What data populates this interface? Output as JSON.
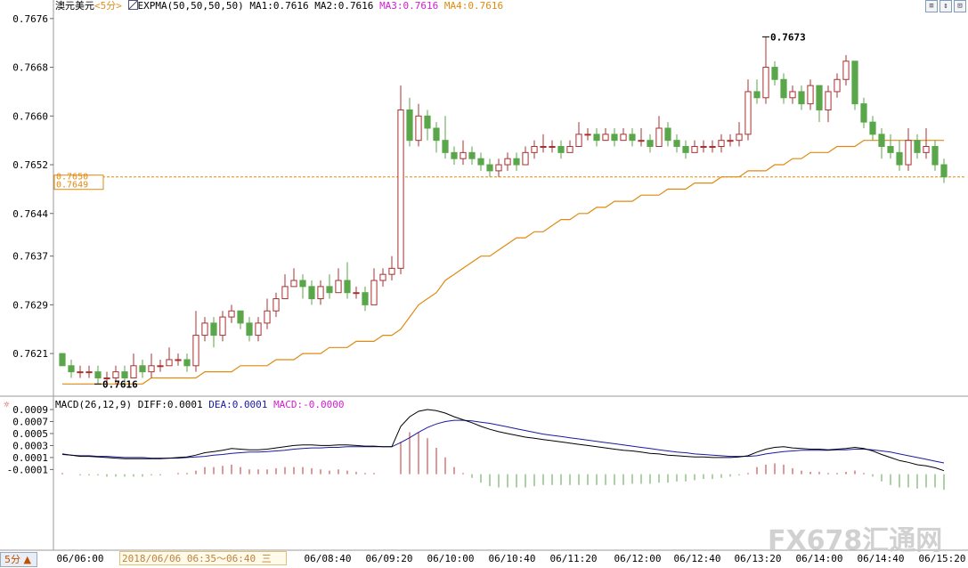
{
  "header": {
    "symbol": "澳元美元",
    "period": "<5分>",
    "indicator": "EXPMA(50,50,50,50)",
    "ma1": "MA1:0.7616",
    "ma2": "MA2:0.7616",
    "ma3": "MA3:0.7616",
    "ma4": "MA4:0.7616"
  },
  "macd_header": {
    "name": "MACD(26,12,9)",
    "diff": "DIFF:0.0001",
    "dea": "DEA:0.0001",
    "macd": "MACD:-0.0000"
  },
  "toolbar": {
    "icon_a": "≡",
    "icon_b": "↕",
    "icon_c": "⊡"
  },
  "price_labels": {
    "current_a": "0.7650",
    "current_b": "0.7649",
    "high": "0.7673",
    "low": "0.7616"
  },
  "crosshair_time": "2018/06/06 06:35～06:40 三",
  "period_tab": "5分 ▲",
  "watermark": "FX678汇通网",
  "colors": {
    "up": "#a83030",
    "down": "#5aa64a",
    "ema": "#e08a10",
    "diff": "#000000",
    "dea": "#1a1aa0",
    "grid": "#cccccc"
  },
  "chart_data": [
    {
      "type": "candlestick",
      "ylim": [
        0.7614,
        0.7677
      ],
      "yticks": [
        "0.7676",
        "0.7668",
        "0.7660",
        "0.7652",
        "0.7644",
        "0.7637",
        "0.7629",
        "0.7621"
      ],
      "xticks": [
        "06/06:00",
        "06/08:40",
        "06/09:20",
        "06/10:00",
        "06/10:40",
        "06/11:20",
        "06/12:00",
        "06/12:40",
        "06/13:20",
        "06/14:00",
        "06/14:40",
        "06/15:20"
      ],
      "candles": [
        [
          0.7621,
          0.7619,
          0.7621,
          0.7619
        ],
        [
          0.7619,
          0.7618,
          0.762,
          0.7617
        ],
        [
          0.7618,
          0.7618,
          0.7619,
          0.7617
        ],
        [
          0.7618,
          0.7618,
          0.7619,
          0.7617
        ],
        [
          0.7618,
          0.7617,
          0.7619,
          0.7616
        ],
        [
          0.7617,
          0.7617,
          0.7618,
          0.7616
        ],
        [
          0.7617,
          0.7618,
          0.7619,
          0.7616
        ],
        [
          0.7618,
          0.7617,
          0.7619,
          0.7616
        ],
        [
          0.7617,
          0.7619,
          0.7621,
          0.7617
        ],
        [
          0.7619,
          0.7618,
          0.762,
          0.7617
        ],
        [
          0.7618,
          0.7619,
          0.7621,
          0.7617
        ],
        [
          0.7619,
          0.7619,
          0.762,
          0.7618
        ],
        [
          0.7619,
          0.762,
          0.7622,
          0.7619
        ],
        [
          0.762,
          0.762,
          0.7621,
          0.7619
        ],
        [
          0.762,
          0.7619,
          0.7621,
          0.7618
        ],
        [
          0.7619,
          0.7624,
          0.7628,
          0.7618
        ],
        [
          0.7624,
          0.7626,
          0.7627,
          0.7623
        ],
        [
          0.7626,
          0.7624,
          0.7627,
          0.7622
        ],
        [
          0.7624,
          0.7627,
          0.7628,
          0.7623
        ],
        [
          0.7627,
          0.7628,
          0.7629,
          0.7626
        ],
        [
          0.7628,
          0.7626,
          0.7628,
          0.7625
        ],
        [
          0.7626,
          0.7624,
          0.7627,
          0.7623
        ],
        [
          0.7624,
          0.7626,
          0.7627,
          0.7623
        ],
        [
          0.7626,
          0.7628,
          0.763,
          0.7625
        ],
        [
          0.7628,
          0.763,
          0.7631,
          0.7627
        ],
        [
          0.763,
          0.7632,
          0.7634,
          0.763
        ],
        [
          0.7632,
          0.7633,
          0.7635,
          0.7632
        ],
        [
          0.7633,
          0.7632,
          0.7634,
          0.763
        ],
        [
          0.7632,
          0.763,
          0.7633,
          0.7629
        ],
        [
          0.763,
          0.7632,
          0.7633,
          0.7629
        ],
        [
          0.7632,
          0.7631,
          0.7634,
          0.763
        ],
        [
          0.7631,
          0.7633,
          0.7635,
          0.7631
        ],
        [
          0.7633,
          0.7631,
          0.7636,
          0.763
        ],
        [
          0.7631,
          0.7631,
          0.7632,
          0.763
        ],
        [
          0.7631,
          0.7629,
          0.7632,
          0.7628
        ],
        [
          0.7629,
          0.7633,
          0.7635,
          0.7629
        ],
        [
          0.7633,
          0.7634,
          0.7635,
          0.7632
        ],
        [
          0.7634,
          0.7635,
          0.7637,
          0.7633
        ],
        [
          0.7635,
          0.7661,
          0.7665,
          0.7634
        ],
        [
          0.7661,
          0.7656,
          0.7663,
          0.7655
        ],
        [
          0.7656,
          0.766,
          0.7662,
          0.7655
        ],
        [
          0.766,
          0.7658,
          0.7661,
          0.7656
        ],
        [
          0.7658,
          0.7656,
          0.7659,
          0.7654
        ],
        [
          0.7656,
          0.7654,
          0.766,
          0.7653
        ],
        [
          0.7654,
          0.7653,
          0.7655,
          0.7652
        ],
        [
          0.7653,
          0.7654,
          0.7656,
          0.7652
        ],
        [
          0.7654,
          0.7653,
          0.7655,
          0.7652
        ],
        [
          0.7653,
          0.7652,
          0.7654,
          0.7651
        ],
        [
          0.7652,
          0.7651,
          0.7653,
          0.765
        ],
        [
          0.7651,
          0.7652,
          0.7653,
          0.765
        ],
        [
          0.7652,
          0.7653,
          0.7654,
          0.7651
        ],
        [
          0.7653,
          0.7652,
          0.7654,
          0.7651
        ],
        [
          0.7652,
          0.7654,
          0.7655,
          0.7652
        ],
        [
          0.7654,
          0.7655,
          0.7656,
          0.7653
        ],
        [
          0.7655,
          0.7655,
          0.7657,
          0.7654
        ],
        [
          0.7655,
          0.7655,
          0.7656,
          0.7654
        ],
        [
          0.7655,
          0.7654,
          0.7656,
          0.7653
        ],
        [
          0.7654,
          0.7655,
          0.7656,
          0.7654
        ],
        [
          0.7655,
          0.7657,
          0.7659,
          0.7655
        ],
        [
          0.7657,
          0.7657,
          0.7658,
          0.7656
        ],
        [
          0.7657,
          0.7656,
          0.7658,
          0.7655
        ],
        [
          0.7656,
          0.7657,
          0.7658,
          0.7656
        ],
        [
          0.7657,
          0.7656,
          0.7658,
          0.7655
        ],
        [
          0.7656,
          0.7657,
          0.7658,
          0.7656
        ],
        [
          0.7657,
          0.7656,
          0.7658,
          0.7655
        ],
        [
          0.7656,
          0.7656,
          0.7658,
          0.7655
        ],
        [
          0.7656,
          0.7655,
          0.7657,
          0.7654
        ],
        [
          0.7655,
          0.7658,
          0.766,
          0.7655
        ],
        [
          0.7658,
          0.7656,
          0.7659,
          0.7655
        ],
        [
          0.7656,
          0.7655,
          0.7657,
          0.7654
        ],
        [
          0.7655,
          0.7654,
          0.7656,
          0.7653
        ],
        [
          0.7654,
          0.7655,
          0.7656,
          0.7654
        ],
        [
          0.7655,
          0.7655,
          0.7656,
          0.7654
        ],
        [
          0.7655,
          0.7655,
          0.7656,
          0.7654
        ],
        [
          0.7655,
          0.7656,
          0.7657,
          0.7654
        ],
        [
          0.7656,
          0.7656,
          0.7657,
          0.7655
        ],
        [
          0.7656,
          0.7657,
          0.7659,
          0.7655
        ],
        [
          0.7657,
          0.7664,
          0.7666,
          0.7656
        ],
        [
          0.7664,
          0.7663,
          0.7666,
          0.7662
        ],
        [
          0.7663,
          0.7668,
          0.7673,
          0.7662
        ],
        [
          0.7668,
          0.7666,
          0.7669,
          0.7665
        ],
        [
          0.7666,
          0.7663,
          0.7667,
          0.7662
        ],
        [
          0.7663,
          0.7664,
          0.7665,
          0.7662
        ],
        [
          0.7664,
          0.7662,
          0.7665,
          0.7661
        ],
        [
          0.7662,
          0.7665,
          0.7666,
          0.7661
        ],
        [
          0.7665,
          0.7661,
          0.7665,
          0.7659
        ],
        [
          0.7661,
          0.7664,
          0.7665,
          0.7659
        ],
        [
          0.7664,
          0.7666,
          0.7667,
          0.7663
        ],
        [
          0.7666,
          0.7669,
          0.767,
          0.7665
        ],
        [
          0.7669,
          0.7662,
          0.7669,
          0.7661
        ],
        [
          0.7662,
          0.7659,
          0.7663,
          0.7658
        ],
        [
          0.7659,
          0.7657,
          0.766,
          0.7656
        ],
        [
          0.7657,
          0.7655,
          0.7658,
          0.7653
        ],
        [
          0.7655,
          0.7654,
          0.7657,
          0.7653
        ],
        [
          0.7654,
          0.7652,
          0.7656,
          0.7651
        ],
        [
          0.7652,
          0.7656,
          0.7658,
          0.7651
        ],
        [
          0.7656,
          0.7654,
          0.7657,
          0.7653
        ],
        [
          0.7654,
          0.7655,
          0.7658,
          0.7653
        ],
        [
          0.7655,
          0.7652,
          0.7656,
          0.7651
        ],
        [
          0.7652,
          0.765,
          0.7653,
          0.7649
        ]
      ],
      "ema": [
        0.7616,
        0.7616,
        0.7616,
        0.7616,
        0.7616,
        0.7616,
        0.7616,
        0.7616,
        0.7616,
        0.7616,
        0.7617,
        0.7617,
        0.7617,
        0.7617,
        0.7617,
        0.7617,
        0.7618,
        0.7618,
        0.7618,
        0.7618,
        0.7619,
        0.7619,
        0.7619,
        0.7619,
        0.762,
        0.762,
        0.762,
        0.7621,
        0.7621,
        0.7621,
        0.7622,
        0.7622,
        0.7622,
        0.7623,
        0.7623,
        0.7623,
        0.7624,
        0.7624,
        0.7625,
        0.7627,
        0.7629,
        0.763,
        0.7631,
        0.7633,
        0.7634,
        0.7635,
        0.7636,
        0.7637,
        0.7637,
        0.7638,
        0.7639,
        0.764,
        0.764,
        0.7641,
        0.7641,
        0.7642,
        0.7643,
        0.7643,
        0.7644,
        0.7644,
        0.7645,
        0.7645,
        0.7646,
        0.7646,
        0.7646,
        0.7647,
        0.7647,
        0.7647,
        0.7648,
        0.7648,
        0.7648,
        0.7649,
        0.7649,
        0.7649,
        0.765,
        0.765,
        0.765,
        0.7651,
        0.7651,
        0.7651,
        0.7652,
        0.7652,
        0.7653,
        0.7653,
        0.7654,
        0.7654,
        0.7654,
        0.7655,
        0.7655,
        0.7655,
        0.7656,
        0.7656,
        0.7656,
        0.7656,
        0.7656,
        0.7656,
        0.7656,
        0.7656,
        0.7656,
        0.7656
      ]
    },
    {
      "type": "line+bar",
      "name": "MACD",
      "ylim": [
        -0.0014,
        0.0009
      ],
      "yticks": [
        "0.0009",
        "0.0007",
        "0.0005",
        "0.0003",
        "0.0001",
        "-0.0001"
      ],
      "diff": [
        0.00016,
        0.00014,
        0.00012,
        0.00012,
        0.00011,
        0.0001,
        9e-05,
        8e-05,
        8e-05,
        8e-05,
        8e-05,
        8e-05,
        9e-05,
        0.0001,
        0.00011,
        0.00014,
        0.00018,
        0.0002,
        0.00022,
        0.00025,
        0.00024,
        0.00023,
        0.00023,
        0.00024,
        0.00026,
        0.00028,
        0.0003,
        0.00031,
        0.00031,
        0.0003,
        0.0003,
        0.00031,
        0.00031,
        0.0003,
        0.00029,
        0.00029,
        0.00028,
        0.00028,
        0.00062,
        0.00078,
        0.00087,
        0.0009,
        0.00088,
        0.00084,
        0.00078,
        0.00073,
        0.00068,
        0.00062,
        0.00057,
        0.00053,
        0.0005,
        0.00047,
        0.00044,
        0.00042,
        0.0004,
        0.00038,
        0.00036,
        0.00034,
        0.00032,
        0.0003,
        0.00028,
        0.00026,
        0.00024,
        0.00022,
        0.00021,
        0.00019,
        0.00017,
        0.00016,
        0.00014,
        0.00013,
        0.00012,
        0.00011,
        0.00011,
        0.0001,
        0.0001,
        0.0001,
        0.00011,
        0.00013,
        0.00019,
        0.00024,
        0.00027,
        0.00028,
        0.00026,
        0.00025,
        0.00024,
        0.00024,
        0.00023,
        0.00024,
        0.00025,
        0.00027,
        0.00025,
        0.00021,
        0.00015,
        0.0001,
        5e-05,
        2e-05,
        -2e-05,
        -4e-05,
        -7e-05,
        -0.00012
      ],
      "dea": [
        0.00015,
        0.00014,
        0.00013,
        0.00013,
        0.00012,
        0.00012,
        0.00011,
        0.0001,
        0.0001,
        0.0001,
        9e-05,
        9e-05,
        9e-05,
        9e-05,
        0.0001,
        0.00011,
        0.00012,
        0.00014,
        0.00015,
        0.00017,
        0.00018,
        0.00019,
        0.00019,
        0.0002,
        0.00021,
        0.00022,
        0.00024,
        0.00025,
        0.00026,
        0.00026,
        0.00027,
        0.00027,
        0.00028,
        0.00028,
        0.00028,
        0.00028,
        0.00028,
        0.00028,
        0.00035,
        0.00043,
        0.00052,
        0.0006,
        0.00066,
        0.0007,
        0.00072,
        0.00072,
        0.00071,
        0.00069,
        0.00067,
        0.00064,
        0.00061,
        0.00058,
        0.00055,
        0.00052,
        0.00049,
        0.00047,
        0.00045,
        0.00043,
        0.00041,
        0.00039,
        0.00037,
        0.00035,
        0.00033,
        0.00031,
        0.00029,
        0.00027,
        0.00025,
        0.00023,
        0.00021,
        0.00019,
        0.00018,
        0.00016,
        0.00015,
        0.00014,
        0.00013,
        0.00012,
        0.00012,
        0.00012,
        0.00013,
        0.00016,
        0.00018,
        0.0002,
        0.00021,
        0.00022,
        0.00022,
        0.00022,
        0.00022,
        0.00023,
        0.00023,
        0.00024,
        0.00024,
        0.00023,
        0.00021,
        0.00019,
        0.00016,
        0.00013,
        0.0001,
        7e-05,
        4e-05,
        1e-05
      ]
    }
  ]
}
